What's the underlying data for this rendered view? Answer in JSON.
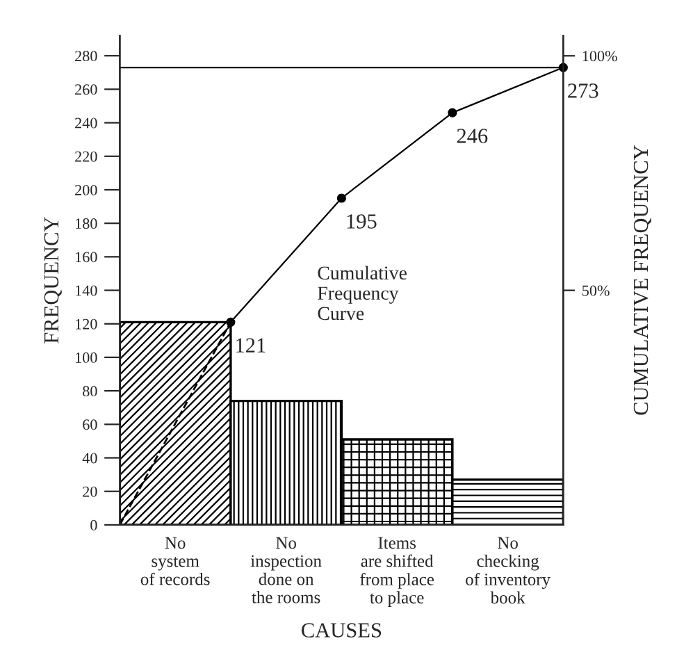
{
  "chart_data": {
    "type": "bar",
    "xlabel": "CAUSES",
    "ylabel": "FREQUENCY",
    "y2label": "CUMULATIVE FREQUENCY",
    "categories": [
      "No\nsystem\nof records",
      null,
      "No\ninspection\ndone on\nthe rooms",
      null,
      "Items\nare shifted\nfrom place\nto place",
      null,
      "No\nchecking\nof inventory\nbook",
      null
    ],
    "series": [
      {
        "color": "#000000",
        "values": [
          121,
          null,
          74,
          null,
          51,
          null,
          27,
          null
        ]
      },
      {
        "type": "line",
        "color": "#000000",
        "values": [
          null,
          121,
          null,
          195,
          null,
          246,
          null,
          273
        ],
        "value_labels": [
          null,
          "121",
          null,
          "195",
          null,
          "246",
          null,
          "273"
        ]
      }
    ],
    "marker": "circle",
    "ylim": [
      0,
      292
    ],
    "yticks": [
      0,
      20,
      40,
      60,
      80,
      100,
      120,
      140,
      160,
      180,
      200,
      220,
      240,
      260,
      280
    ],
    "y2lim": [
      0,
      104.3
    ],
    "y2ticks": [
      {
        "value": 50,
        "label": "50%"
      },
      {
        "value": 100,
        "label": "100%"
      }
    ],
    "ref_lines": [
      {
        "axis": "y",
        "value": 273
      }
    ],
    "annotations": [
      "Cumulative\nFrequency\nCurve"
    ],
    "grid": false,
    "legend": false
  }
}
